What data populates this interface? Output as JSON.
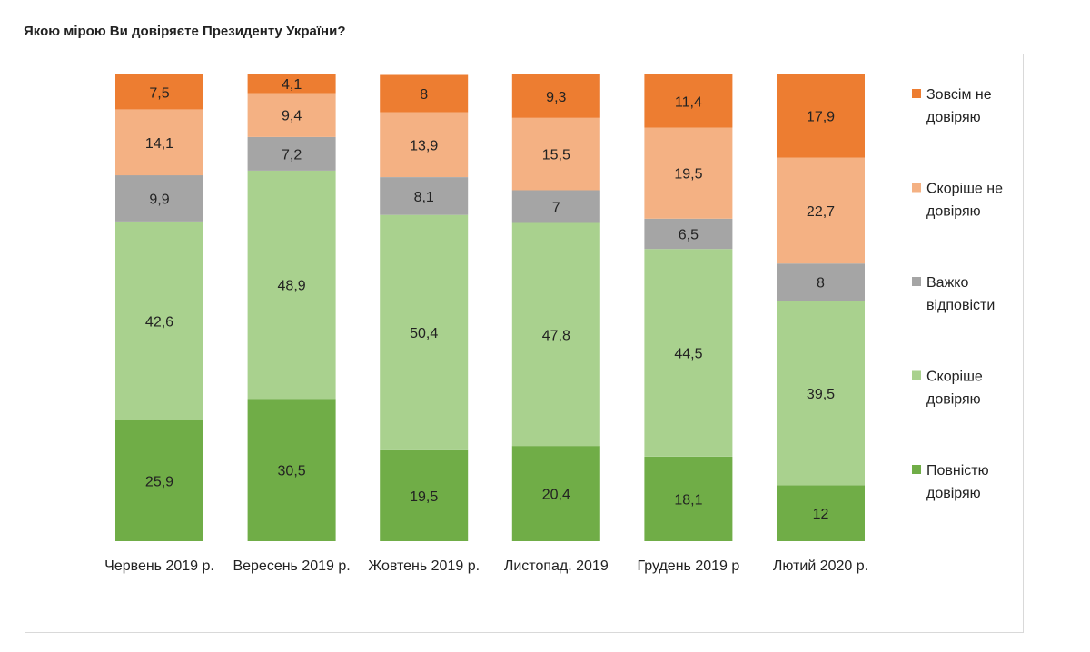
{
  "question": "Якою мірою Ви довіряєте Президенту України?",
  "chart_data": {
    "type": "bar",
    "stacked": true,
    "categories": [
      "Червень 2019 р.",
      "Вересень 2019 р.",
      "Жовтень 2019 р.",
      "Листопад. 2019",
      "Грудень 2019 р",
      "Лютий 2020 р."
    ],
    "series": [
      {
        "name": "Повністю довіряю",
        "legend_lines": [
          "Повністю",
          "довіряю"
        ],
        "color": "#70ad47",
        "values": [
          25.9,
          30.5,
          19.5,
          20.4,
          18.1,
          12
        ],
        "labels": [
          "25,9",
          "30,5",
          "19,5",
          "20,4",
          "18,1",
          "12"
        ]
      },
      {
        "name": "Скоріше довіряю",
        "legend_lines": [
          "Скоріше",
          "довіряю"
        ],
        "color": "#a9d18e",
        "values": [
          42.6,
          48.9,
          50.4,
          47.8,
          44.5,
          39.5
        ],
        "labels": [
          "42,6",
          "48,9",
          "50,4",
          "47,8",
          "44,5",
          "39,5"
        ]
      },
      {
        "name": "Важко відповісти",
        "legend_lines": [
          "Важко",
          "відповісти"
        ],
        "color": "#a5a5a5",
        "values": [
          9.9,
          7.2,
          8.1,
          7,
          6.5,
          8
        ],
        "labels": [
          "9,9",
          "7,2",
          "8,1",
          "7",
          "6,5",
          "8"
        ]
      },
      {
        "name": "Скоріше не довіряю",
        "legend_lines": [
          "Скоріше  не",
          "довіряю"
        ],
        "color": "#f4b183",
        "values": [
          14.1,
          9.4,
          13.9,
          15.5,
          19.5,
          22.7
        ],
        "labels": [
          "14,1",
          "9,4",
          "13,9",
          "15,5",
          "19,5",
          "22,7"
        ]
      },
      {
        "name": "Зовсім не довіряю",
        "legend_lines": [
          "Зовсім не",
          "довіряю"
        ],
        "color": "#ed7d31",
        "values": [
          7.5,
          4.1,
          8,
          9.3,
          11.4,
          17.9
        ],
        "labels": [
          "7,5",
          "4,1",
          "8",
          "9,3",
          "11,4",
          "17,9"
        ]
      }
    ],
    "legend_position": "right",
    "grid": false
  }
}
